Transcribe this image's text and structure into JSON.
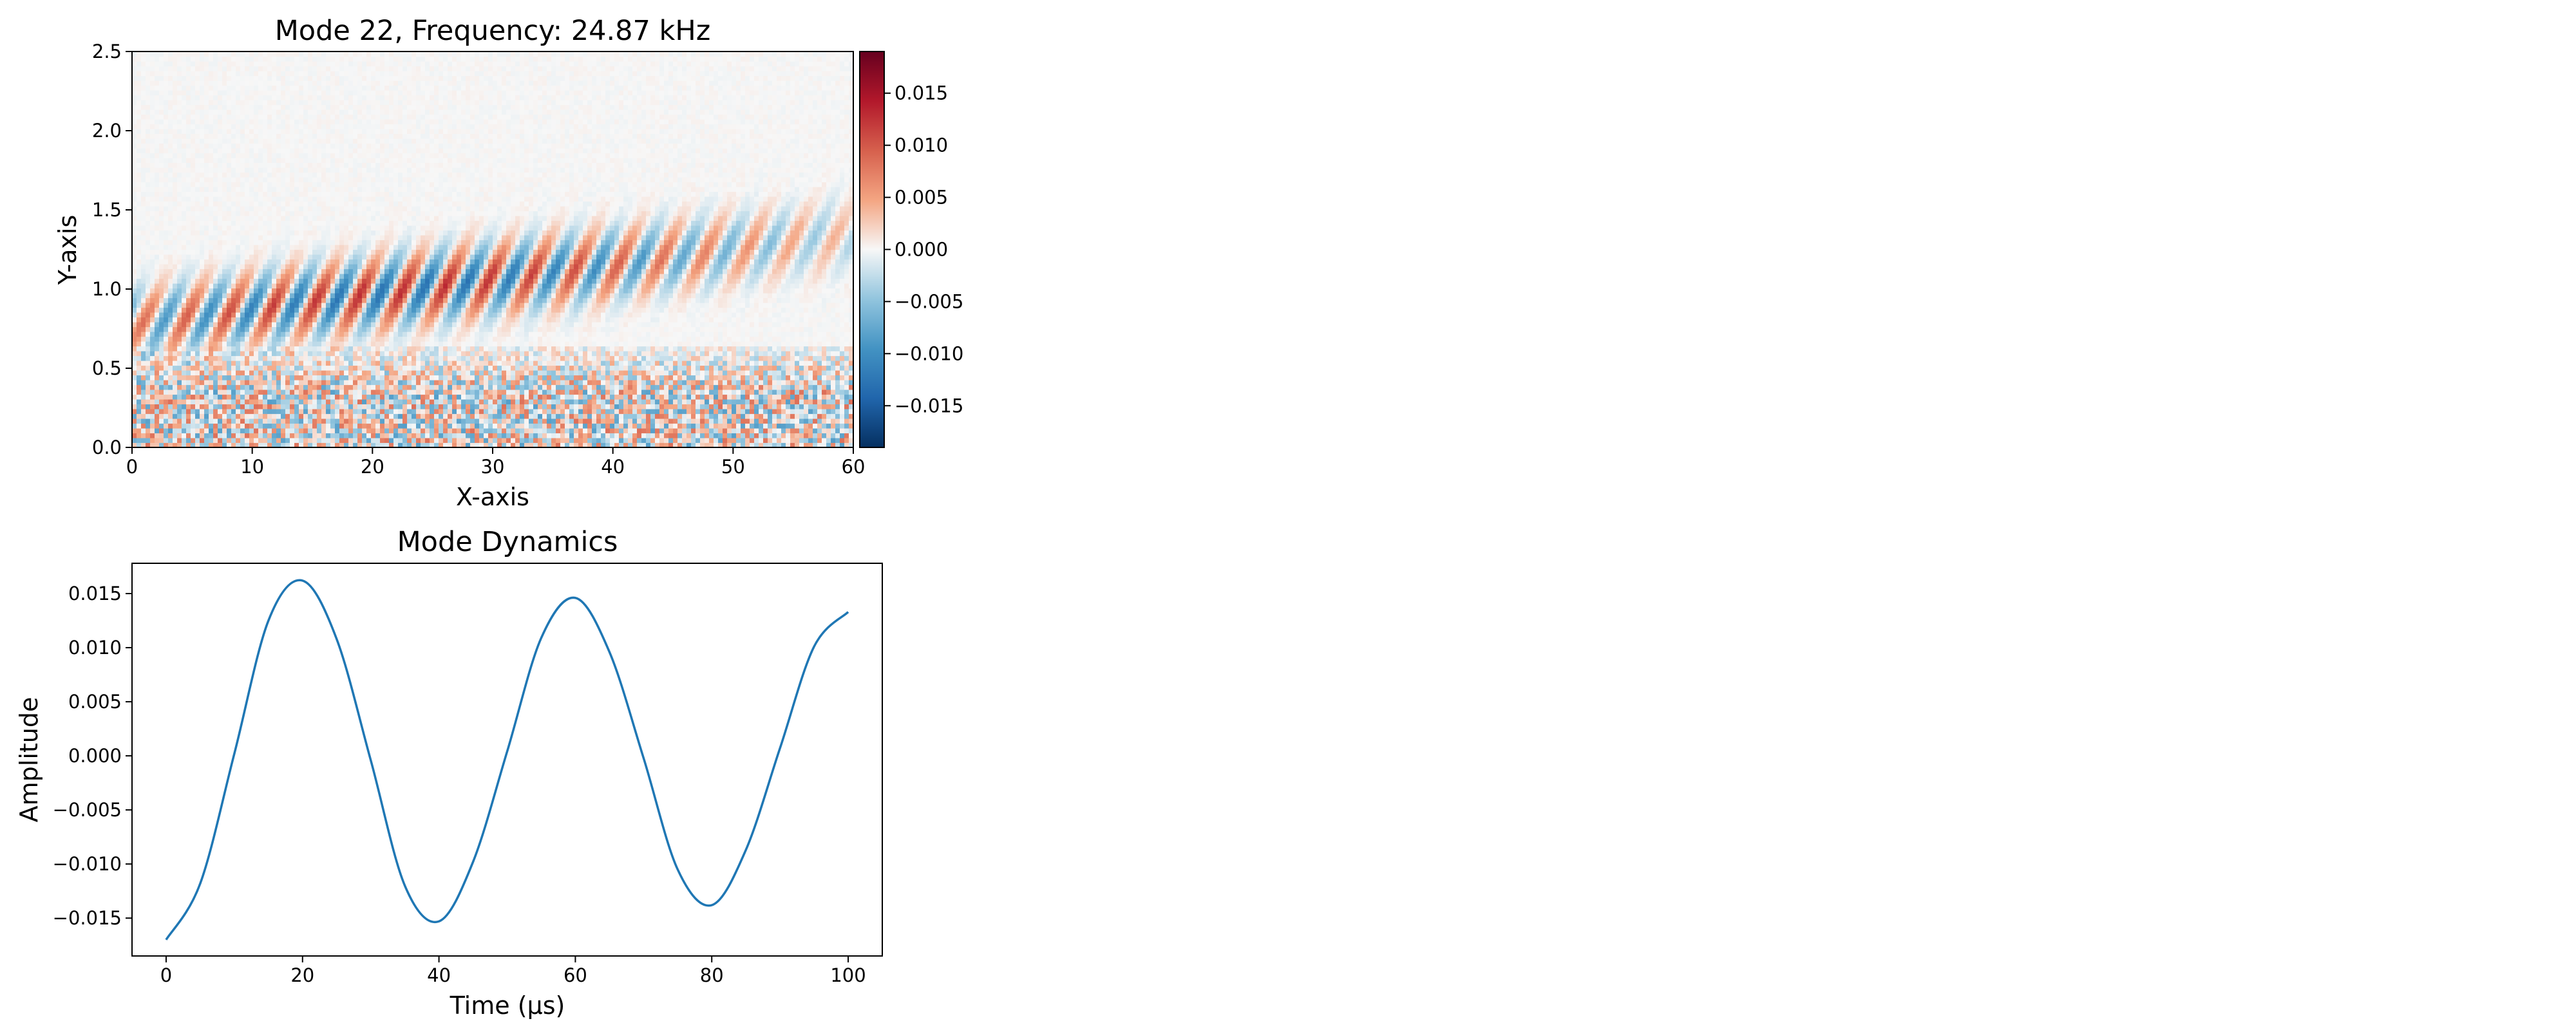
{
  "chart_data": [
    {
      "type": "heatmap",
      "title": "Mode 22, Frequency: 24.87 kHz",
      "xlabel": "X-axis",
      "ylabel": "Y-axis",
      "xlim": [
        0,
        60
      ],
      "ylim": [
        0,
        2.5
      ],
      "x_ticks": [
        "0",
        "10",
        "20",
        "30",
        "40",
        "50",
        "60"
      ],
      "y_ticks": [
        "0.0",
        "0.5",
        "1.0",
        "1.5",
        "2.0",
        "2.5"
      ],
      "colormap": "RdBu_r",
      "value_range": [
        -0.019,
        0.019
      ],
      "colorbar": {
        "ticks": [
          0.015,
          0.01,
          0.005,
          0.0,
          -0.005,
          -0.01,
          -0.015
        ],
        "tick_labels": [
          "0.015",
          "0.010",
          "0.005",
          "0.000",
          "−0.005",
          "−0.010",
          "−0.015"
        ]
      },
      "features": {
        "wave_band": "oblique alternating red/blue stripes along a band rising from y≈0.75 at x=0 to y≈1.35 at x=60",
        "noise_region": "high-frequency mixed red/blue noise below y≈0.6",
        "upper_region": "near-zero (white) above y≈1.6"
      }
    },
    {
      "type": "line",
      "title": "Mode Dynamics",
      "xlabel": "Time (μs)",
      "ylabel": "Amplitude",
      "xlim": [
        -5,
        105
      ],
      "ylim": [
        -0.0185,
        0.0178
      ],
      "x_ticks": [
        "0",
        "20",
        "40",
        "60",
        "80",
        "100"
      ],
      "y_ticks": [
        "−0.015",
        "−0.010",
        "−0.005",
        "0.000",
        "0.005",
        "0.010",
        "0.015"
      ],
      "series": [
        {
          "color": "#1f77b4",
          "x": [
            0,
            5,
            10,
            15,
            20,
            25,
            30,
            35,
            40,
            45,
            50,
            55,
            60,
            65,
            70,
            75,
            80,
            85,
            90,
            95,
            100
          ],
          "y": [
            -0.017,
            -0.0118,
            0.0002,
            0.0125,
            0.0162,
            0.0108,
            -0.0004,
            -0.012,
            -0.0153,
            -0.0098,
            0.0004,
            0.0109,
            0.0146,
            0.0096,
            -0.0002,
            -0.0105,
            -0.0138,
            -0.0087,
            0.0007,
            0.0101,
            0.0133
          ]
        }
      ]
    }
  ]
}
